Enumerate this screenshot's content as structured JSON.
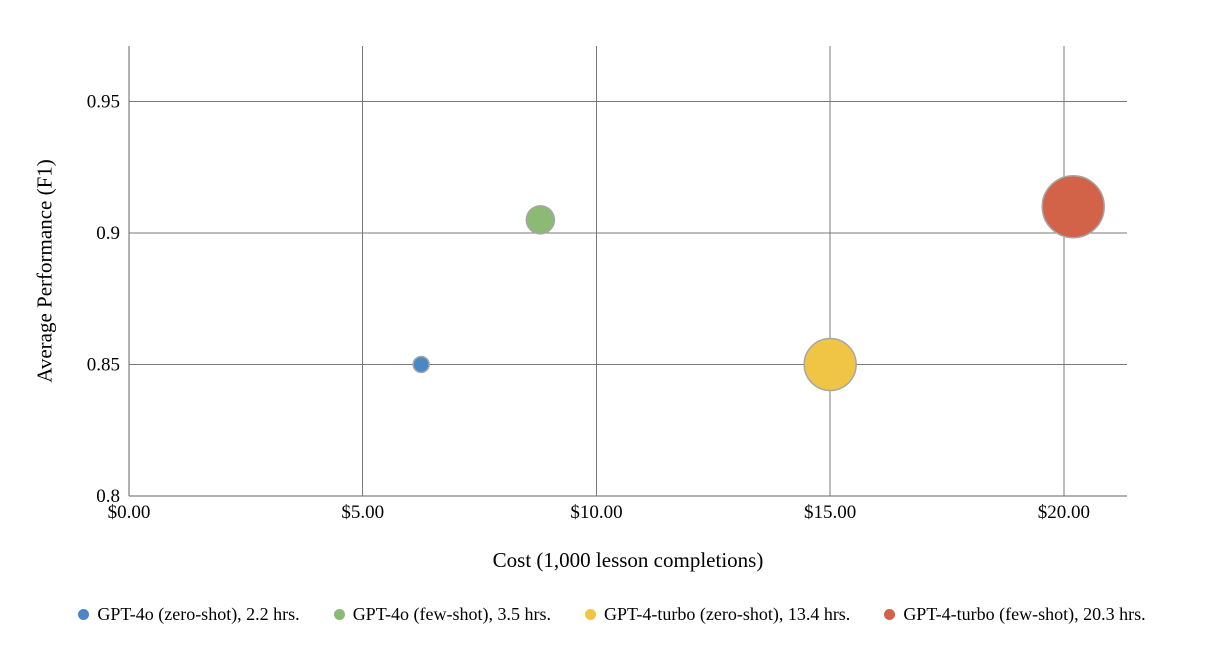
{
  "chart_data": {
    "type": "scatter",
    "variant": "bubble",
    "title": "",
    "xlabel": "Cost (1,000 lesson completions)",
    "ylabel": "Average Performance (F1)",
    "xlim": [
      0,
      21.35
    ],
    "ylim": [
      0.8,
      0.9711
    ],
    "grid": true,
    "legend_position": "bottom",
    "size_encoding": "hours",
    "x_ticks": [
      {
        "value": 0,
        "label": "$0.00"
      },
      {
        "value": 5,
        "label": "$5.00"
      },
      {
        "value": 10,
        "label": "$10.00"
      },
      {
        "value": 15,
        "label": "$15.00"
      },
      {
        "value": 20,
        "label": "$20.00"
      }
    ],
    "y_ticks": [
      {
        "value": 0.8,
        "label": "0.8"
      },
      {
        "value": 0.85,
        "label": "0.85"
      },
      {
        "value": 0.9,
        "label": "0.9"
      },
      {
        "value": 0.95,
        "label": "0.95"
      }
    ],
    "series": [
      {
        "name": "GPT-4o (zero-shot), 2.2 hrs.",
        "model": "GPT-4o (zero-shot)",
        "hours": 2.2,
        "cost": 6.25,
        "f1": 0.85,
        "color": "#4A87C7",
        "radius_px": 8
      },
      {
        "name": "GPT-4o (few-shot), 3.5 hrs.",
        "model": "GPT-4o (few-shot)",
        "hours": 3.5,
        "cost": 8.8,
        "f1": 0.905,
        "color": "#8BBA74",
        "radius_px": 14
      },
      {
        "name": "GPT-4-turbo (zero-shot), 13.4 hrs.",
        "model": "GPT-4-turbo (zero-shot)",
        "hours": 13.4,
        "cost": 15.0,
        "f1": 0.85,
        "color": "#F0C545",
        "radius_px": 26
      },
      {
        "name": "GPT-4-turbo (few-shot), 20.3 hrs.",
        "model": "GPT-4-turbo (few-shot)",
        "hours": 20.3,
        "cost": 20.2,
        "f1": 0.91,
        "color": "#D26349",
        "radius_px": 31
      }
    ],
    "colors": {
      "grid": "#7a7a7a",
      "axis": "#666666",
      "text": "#000000",
      "bubble_stroke": "#A6A6A6",
      "background": "#FFFFFF"
    }
  }
}
